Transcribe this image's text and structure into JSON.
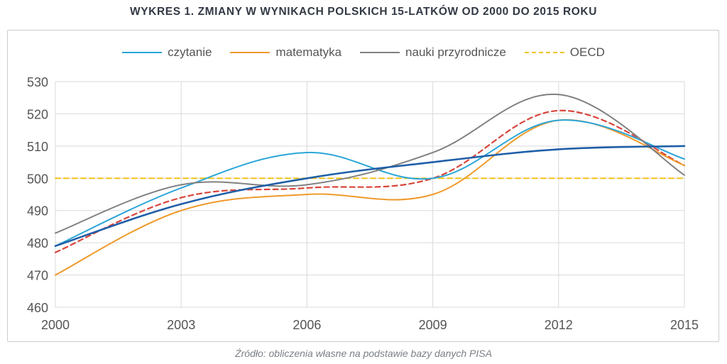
{
  "title": "WYKRES 1. ZMIANY W WYNIKACH POLSKICH 15-LATKÓW OD 2000 DO 2015 ROKU",
  "source": "Źródło: obliczenia własne na podstawie bazy danych PISA",
  "chart_data": {
    "type": "line",
    "xlabel": "",
    "ylabel": "",
    "x": [
      2000,
      2003,
      2006,
      2009,
      2012,
      2015
    ],
    "x_ticks": [
      "2000",
      "2003",
      "2006",
      "2009",
      "2012",
      "2015"
    ],
    "ylim": [
      460,
      530
    ],
    "y_ticks": [
      "460",
      "470",
      "480",
      "490",
      "500",
      "510",
      "520",
      "530"
    ],
    "grid": true,
    "legend_position": "top",
    "series": [
      {
        "name": "czytanie",
        "color": "#2aa6d8",
        "dash": "solid",
        "values": [
          479,
          497,
          508,
          500,
          518,
          506
        ]
      },
      {
        "name": "matematyka",
        "color": "#ef9a2a",
        "dash": "solid",
        "values": [
          470,
          490,
          495,
          495,
          518,
          504
        ]
      },
      {
        "name": "nauki przyrodnicze",
        "color": "#808080",
        "dash": "solid",
        "values": [
          483,
          498,
          498,
          508,
          526,
          501
        ]
      },
      {
        "name": "OECD",
        "color": "#f0c419",
        "dash": "dashed",
        "values": [
          500,
          500,
          500,
          500,
          500,
          500
        ]
      }
    ],
    "unlabeled_series": [
      {
        "color": "#1f5fa8",
        "dash": "solid",
        "values": [
          479,
          492,
          500,
          505,
          509,
          510
        ]
      },
      {
        "color": "#d9453b",
        "dash": "dashed",
        "values": [
          477,
          494,
          497,
          500,
          521,
          504
        ]
      }
    ]
  }
}
